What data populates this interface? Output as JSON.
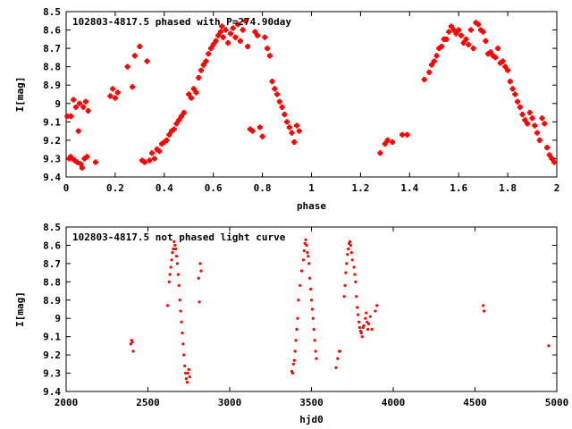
{
  "chart_data": [
    {
      "type": "scatter",
      "title": "102803-4817.5 phased with P=274.90day",
      "xlabel": "phase",
      "ylabel": "I[mag]",
      "xlim": [
        0,
        2
      ],
      "ylim": [
        8.5,
        9.4
      ],
      "y_inverted": true,
      "grid": false,
      "marker": "filled-cross",
      "color": "#ff0000",
      "x_ticks": [
        "0",
        "0.2",
        "0.4",
        "0.6",
        "0.8",
        "1",
        "1.2",
        "1.4",
        "1.6",
        "1.8",
        "2"
      ],
      "y_ticks": [
        "8.5",
        "8.6",
        "8.7",
        "8.8",
        "8.9",
        "9",
        "9.1",
        "9.2",
        "9.3",
        "9.4"
      ],
      "points": [
        [
          0.005,
          9.07
        ],
        [
          0.012,
          9.3
        ],
        [
          0.018,
          9.29
        ],
        [
          0.02,
          9.07
        ],
        [
          0.025,
          9.3
        ],
        [
          0.03,
          8.98
        ],
        [
          0.035,
          9.31
        ],
        [
          0.04,
          9.02
        ],
        [
          0.045,
          9.32
        ],
        [
          0.05,
          9.15
        ],
        [
          0.055,
          9.0
        ],
        [
          0.06,
          9.33
        ],
        [
          0.065,
          9.35
        ],
        [
          0.07,
          9.02
        ],
        [
          0.075,
          9.3
        ],
        [
          0.08,
          8.99
        ],
        [
          0.085,
          9.29
        ],
        [
          0.09,
          9.04
        ],
        [
          0.12,
          9.32
        ],
        [
          0.18,
          8.96
        ],
        [
          0.19,
          8.92
        ],
        [
          0.2,
          8.97
        ],
        [
          0.21,
          8.94
        ],
        [
          0.25,
          8.8
        ],
        [
          0.27,
          8.91
        ],
        [
          0.28,
          8.74
        ],
        [
          0.3,
          8.69
        ],
        [
          0.31,
          9.31
        ],
        [
          0.32,
          9.32
        ],
        [
          0.33,
          8.77
        ],
        [
          0.34,
          9.31
        ],
        [
          0.35,
          9.27
        ],
        [
          0.36,
          9.3
        ],
        [
          0.37,
          9.25
        ],
        [
          0.38,
          9.26
        ],
        [
          0.39,
          9.22
        ],
        [
          0.4,
          9.21
        ],
        [
          0.41,
          9.2
        ],
        [
          0.42,
          9.17
        ],
        [
          0.43,
          9.15
        ],
        [
          0.44,
          9.14
        ],
        [
          0.45,
          9.11
        ],
        [
          0.46,
          9.09
        ],
        [
          0.47,
          9.07
        ],
        [
          0.48,
          9.05
        ],
        [
          0.5,
          8.95
        ],
        [
          0.51,
          8.97
        ],
        [
          0.52,
          8.92
        ],
        [
          0.53,
          8.94
        ],
        [
          0.54,
          8.86
        ],
        [
          0.55,
          8.82
        ],
        [
          0.56,
          8.79
        ],
        [
          0.57,
          8.77
        ],
        [
          0.58,
          8.73
        ],
        [
          0.59,
          8.7
        ],
        [
          0.6,
          8.68
        ],
        [
          0.61,
          8.66
        ],
        [
          0.62,
          8.63
        ],
        [
          0.63,
          8.61
        ],
        [
          0.635,
          8.58
        ],
        [
          0.64,
          8.64
        ],
        [
          0.65,
          8.6
        ],
        [
          0.66,
          8.67
        ],
        [
          0.67,
          8.62
        ],
        [
          0.68,
          8.59
        ],
        [
          0.69,
          8.64
        ],
        [
          0.7,
          8.57
        ],
        [
          0.71,
          8.66
        ],
        [
          0.72,
          8.6
        ],
        [
          0.73,
          8.55
        ],
        [
          0.74,
          8.69
        ],
        [
          0.75,
          9.14
        ],
        [
          0.76,
          9.15
        ],
        [
          0.77,
          8.61
        ],
        [
          0.78,
          8.63
        ],
        [
          0.79,
          9.13
        ],
        [
          0.8,
          9.18
        ],
        [
          0.81,
          8.64
        ],
        [
          0.82,
          8.7
        ],
        [
          0.83,
          8.74
        ],
        [
          0.84,
          8.88
        ],
        [
          0.85,
          8.92
        ],
        [
          0.86,
          8.95
        ],
        [
          0.87,
          8.99
        ],
        [
          0.88,
          9.02
        ],
        [
          0.89,
          9.06
        ],
        [
          0.9,
          9.1
        ],
        [
          0.91,
          9.13
        ],
        [
          0.92,
          9.16
        ],
        [
          0.93,
          9.21
        ],
        [
          0.94,
          9.12
        ],
        [
          0.95,
          9.15
        ],
        [
          1.28,
          9.27
        ],
        [
          1.3,
          9.22
        ],
        [
          1.31,
          9.2
        ],
        [
          1.33,
          9.21
        ],
        [
          1.37,
          9.17
        ],
        [
          1.39,
          9.17
        ],
        [
          1.46,
          8.87
        ],
        [
          1.48,
          8.83
        ],
        [
          1.49,
          8.79
        ],
        [
          1.5,
          8.77
        ],
        [
          1.51,
          8.74
        ],
        [
          1.52,
          8.7
        ],
        [
          1.53,
          8.69
        ],
        [
          1.54,
          8.65
        ],
        [
          1.55,
          8.65
        ],
        [
          1.56,
          8.61
        ],
        [
          1.57,
          8.58
        ],
        [
          1.58,
          8.6
        ],
        [
          1.59,
          8.62
        ],
        [
          1.6,
          8.6
        ],
        [
          1.61,
          8.63
        ],
        [
          1.62,
          8.67
        ],
        [
          1.63,
          8.65
        ],
        [
          1.64,
          8.68
        ],
        [
          1.65,
          8.6
        ],
        [
          1.66,
          8.7
        ],
        [
          1.67,
          8.56
        ],
        [
          1.68,
          8.57
        ],
        [
          1.69,
          8.6
        ],
        [
          1.7,
          8.61
        ],
        [
          1.71,
          8.66
        ],
        [
          1.72,
          8.73
        ],
        [
          1.73,
          8.72
        ],
        [
          1.74,
          8.74
        ],
        [
          1.75,
          8.75
        ],
        [
          1.76,
          8.7
        ],
        [
          1.77,
          8.78
        ],
        [
          1.78,
          8.77
        ],
        [
          1.79,
          8.8
        ],
        [
          1.8,
          8.82
        ],
        [
          1.81,
          8.88
        ],
        [
          1.82,
          8.92
        ],
        [
          1.83,
          8.95
        ],
        [
          1.84,
          8.99
        ],
        [
          1.85,
          9.02
        ],
        [
          1.86,
          9.06
        ],
        [
          1.87,
          9.09
        ],
        [
          1.88,
          9.11
        ],
        [
          1.89,
          9.05
        ],
        [
          1.9,
          9.08
        ],
        [
          1.91,
          9.12
        ],
        [
          1.92,
          9.16
        ],
        [
          1.93,
          9.2
        ],
        [
          1.94,
          9.08
        ],
        [
          1.95,
          9.11
        ],
        [
          1.96,
          9.24
        ],
        [
          1.97,
          9.28
        ],
        [
          1.98,
          9.3
        ],
        [
          1.99,
          9.32
        ]
      ]
    },
    {
      "type": "scatter",
      "title": "102803-4817.5 not phased light curve",
      "xlabel": "hjd0",
      "ylabel": "I[mag]",
      "xlim": [
        2000,
        5000
      ],
      "ylim": [
        8.5,
        9.4
      ],
      "y_inverted": true,
      "grid": false,
      "marker": "dot",
      "color": "#ff0000",
      "x_ticks": [
        "2000",
        "2500",
        "3000",
        "3500",
        "4000",
        "4500",
        "5000"
      ],
      "y_ticks": [
        "8.5",
        "8.6",
        "8.7",
        "8.8",
        "8.9",
        "9",
        "9.1",
        "9.2",
        "9.3",
        "9.4"
      ],
      "points": [
        [
          2395,
          9.14
        ],
        [
          2400,
          9.12
        ],
        [
          2405,
          9.13
        ],
        [
          2410,
          9.18
        ],
        [
          2620,
          8.93
        ],
        [
          2630,
          8.8
        ],
        [
          2635,
          8.76
        ],
        [
          2640,
          8.72
        ],
        [
          2645,
          8.68
        ],
        [
          2650,
          8.64
        ],
        [
          2655,
          8.62
        ],
        [
          2660,
          8.58
        ],
        [
          2665,
          8.6
        ],
        [
          2670,
          8.62
        ],
        [
          2675,
          8.66
        ],
        [
          2680,
          8.7
        ],
        [
          2685,
          8.76
        ],
        [
          2690,
          8.82
        ],
        [
          2695,
          8.9
        ],
        [
          2700,
          8.96
        ],
        [
          2705,
          9.02
        ],
        [
          2710,
          9.08
        ],
        [
          2715,
          9.14
        ],
        [
          2720,
          9.2
        ],
        [
          2725,
          9.26
        ],
        [
          2730,
          9.3
        ],
        [
          2735,
          9.33
        ],
        [
          2740,
          9.35
        ],
        [
          2745,
          9.3
        ],
        [
          2750,
          9.28
        ],
        [
          2755,
          9.32
        ],
        [
          2810,
          8.78
        ],
        [
          2815,
          8.91
        ],
        [
          2820,
          8.7
        ],
        [
          2825,
          8.74
        ],
        [
          3380,
          9.29
        ],
        [
          3385,
          9.3
        ],
        [
          3390,
          9.25
        ],
        [
          3395,
          9.23
        ],
        [
          3400,
          9.18
        ],
        [
          3405,
          9.12
        ],
        [
          3410,
          9.06
        ],
        [
          3415,
          9.0
        ],
        [
          3420,
          8.9
        ],
        [
          3430,
          8.82
        ],
        [
          3440,
          8.74
        ],
        [
          3450,
          8.68
        ],
        [
          3455,
          8.63
        ],
        [
          3460,
          8.59
        ],
        [
          3465,
          8.57
        ],
        [
          3470,
          8.6
        ],
        [
          3475,
          8.64
        ],
        [
          3480,
          8.66
        ],
        [
          3485,
          8.7
        ],
        [
          3490,
          8.78
        ],
        [
          3495,
          8.84
        ],
        [
          3500,
          8.9
        ],
        [
          3505,
          8.95
        ],
        [
          3510,
          9.0
        ],
        [
          3515,
          9.06
        ],
        [
          3520,
          9.12
        ],
        [
          3525,
          9.18
        ],
        [
          3530,
          9.22
        ],
        [
          3650,
          9.27
        ],
        [
          3660,
          9.22
        ],
        [
          3670,
          9.18
        ],
        [
          3675,
          9.18
        ],
        [
          3700,
          8.88
        ],
        [
          3705,
          8.82
        ],
        [
          3710,
          8.75
        ],
        [
          3715,
          8.7
        ],
        [
          3720,
          8.65
        ],
        [
          3725,
          8.62
        ],
        [
          3730,
          8.59
        ],
        [
          3735,
          8.58
        ],
        [
          3740,
          8.6
        ],
        [
          3745,
          8.64
        ],
        [
          3750,
          8.68
        ],
        [
          3760,
          8.72
        ],
        [
          3765,
          8.76
        ],
        [
          3770,
          8.8
        ],
        [
          3775,
          8.88
        ],
        [
          3780,
          8.94
        ],
        [
          3785,
          8.98
        ],
        [
          3790,
          9.02
        ],
        [
          3795,
          9.05
        ],
        [
          3800,
          9.07
        ],
        [
          3805,
          9.08
        ],
        [
          3810,
          9.1
        ],
        [
          3815,
          9.05
        ],
        [
          3820,
          9.04
        ],
        [
          3830,
          9.0
        ],
        [
          3835,
          8.97
        ],
        [
          3840,
          9.02
        ],
        [
          3845,
          9.06
        ],
        [
          3850,
          9.03
        ],
        [
          3860,
          8.99
        ],
        [
          3870,
          9.06
        ],
        [
          3890,
          8.96
        ],
        [
          3900,
          8.93
        ],
        [
          4550,
          8.93
        ],
        [
          4555,
          8.96
        ],
        [
          4950,
          9.15
        ]
      ]
    }
  ]
}
